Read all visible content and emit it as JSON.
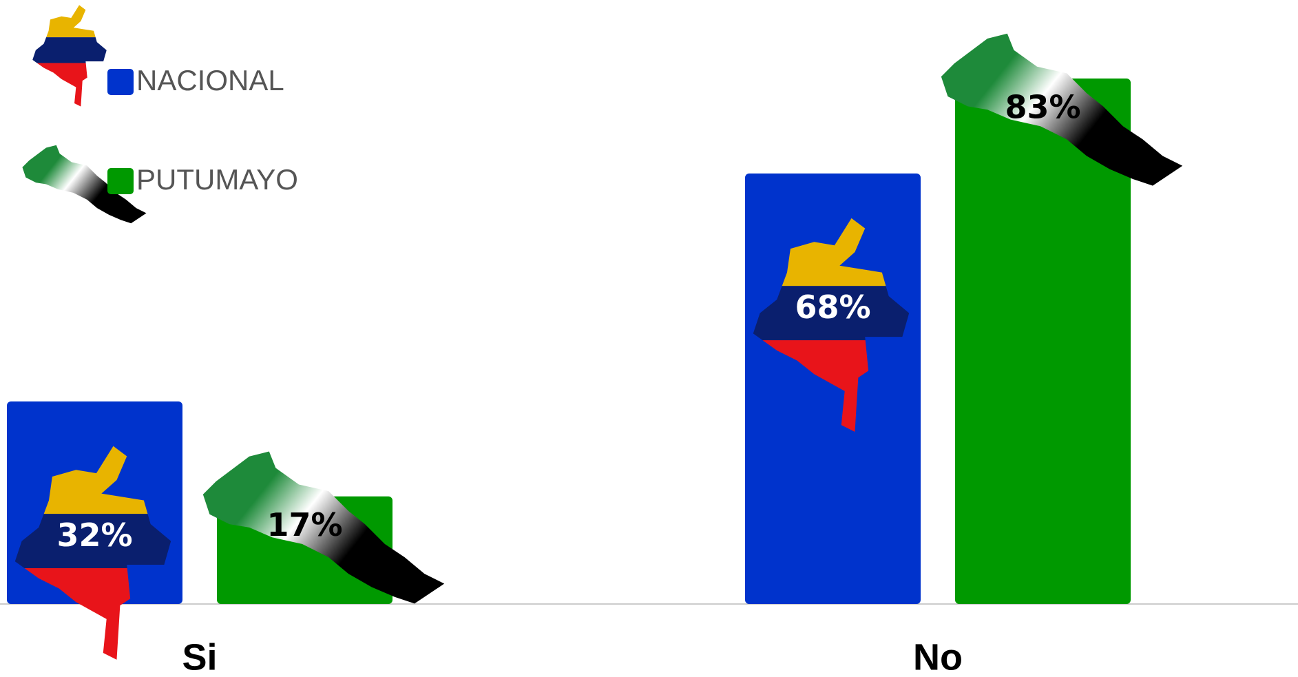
{
  "chart_data": {
    "type": "bar",
    "categories": [
      "Si",
      "No"
    ],
    "series": [
      {
        "name": "NACIONAL",
        "color": "#0033cc",
        "values": [
          32,
          68
        ],
        "value_labels": [
          "32%",
          "68%"
        ]
      },
      {
        "name": "PUTUMAYO",
        "color": "#009900",
        "values": [
          17,
          83
        ],
        "value_labels": [
          "17%",
          "83%"
        ]
      }
    ]
  }
}
